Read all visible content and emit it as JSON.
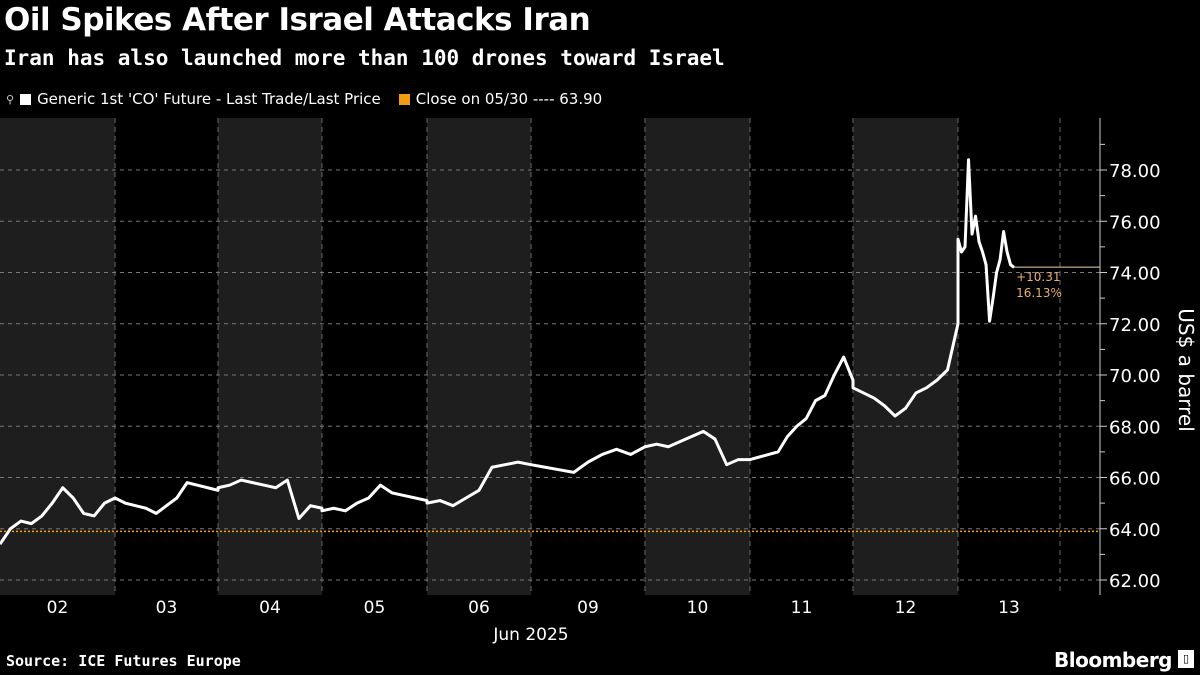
{
  "header": {
    "title": "Oil Spikes After Israel Attacks Iran",
    "subtitle": "Iran has also launched more than 100 drones toward Israel"
  },
  "legend": {
    "series_label": "Generic 1st 'CO' Future - Last Trade/Last Price",
    "close_label": "Close on 05/30 ---- 63.90"
  },
  "footer": {
    "source": "Source: ICE Futures Europe",
    "brand": "Bloomberg"
  },
  "colors": {
    "background": "#000000",
    "band": "#1e1e1e",
    "series": "#ffffff",
    "close": "#f39c12",
    "annotation": "#e8b070"
  },
  "chart_data": {
    "type": "line",
    "title": "Oil Spikes After Israel Attacks Iran",
    "ylabel": "US$ a barrel",
    "xlabel": "Jun 2025",
    "ylim": [
      61.5,
      79.5
    ],
    "yticks": [
      "62.00",
      "64.00",
      "66.00",
      "68.00",
      "70.00",
      "72.00",
      "74.00",
      "76.00",
      "78.00"
    ],
    "categories": [
      "02",
      "03",
      "04",
      "05",
      "06",
      "09",
      "10",
      "11",
      "12",
      "13"
    ],
    "grid": true,
    "legend_position": "top-left",
    "reference_line": {
      "label": "Close on 05/30",
      "value": 63.9
    },
    "last_change": {
      "abs": "+10.31",
      "pct": "16.13%"
    },
    "last_value": 74.21,
    "series": [
      {
        "name": "Generic 1st 'CO' Future - Last Trade/Last Price",
        "days": [
          {
            "day": "02",
            "values": [
              63.4,
              64.0,
              64.3,
              64.2,
              64.5,
              65.0,
              65.6,
              65.2,
              64.6,
              64.5,
              65.0,
              65.2
            ]
          },
          {
            "day": "03",
            "values": [
              65.2,
              65.0,
              64.9,
              64.8,
              64.6,
              64.9,
              65.2,
              65.8,
              65.7,
              65.6,
              65.5
            ]
          },
          {
            "day": "04",
            "values": [
              65.6,
              65.7,
              65.9,
              65.8,
              65.7,
              65.6,
              65.9,
              64.4,
              64.9,
              64.8
            ]
          },
          {
            "day": "05",
            "values": [
              64.7,
              64.8,
              64.7,
              65.0,
              65.2,
              65.7,
              65.4,
              65.3,
              65.2,
              65.1
            ]
          },
          {
            "day": "06",
            "values": [
              65.0,
              65.1,
              64.9,
              65.2,
              65.5,
              66.4,
              66.5,
              66.6,
              66.5
            ]
          },
          {
            "day": "09",
            "values": [
              66.5,
              66.4,
              66.3,
              66.2,
              66.6,
              66.9,
              67.1,
              66.9,
              67.2
            ]
          },
          {
            "day": "10",
            "values": [
              67.2,
              67.3,
              67.2,
              67.4,
              67.6,
              67.8,
              67.5,
              66.5,
              66.7,
              66.7
            ]
          },
          {
            "day": "11",
            "values": [
              66.7,
              66.8,
              66.9,
              67.0,
              67.6,
              68.0,
              68.3,
              69.0,
              69.2,
              70.0,
              70.7,
              69.8
            ]
          },
          {
            "day": "12",
            "values": [
              69.5,
              69.3,
              69.1,
              68.8,
              68.4,
              68.7,
              69.3,
              69.5,
              69.8,
              70.2,
              72.0
            ]
          },
          {
            "day": "13",
            "values": [
              75.3,
              74.8,
              75.0,
              78.4,
              75.5,
              76.2,
              75.2,
              74.8,
              74.3,
              72.1,
              73.0,
              74.0,
              74.5,
              75.6,
              74.8,
              74.3,
              74.2
            ]
          }
        ]
      }
    ]
  }
}
